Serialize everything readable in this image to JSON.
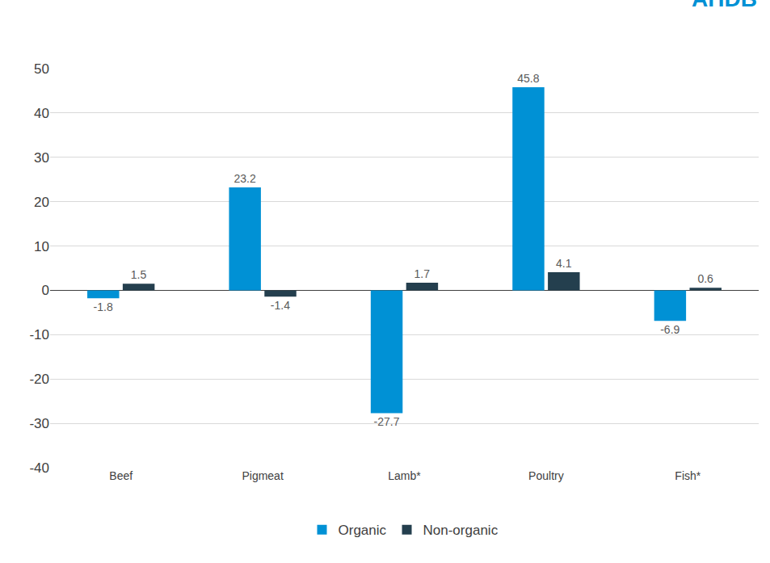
{
  "chart_data": {
    "type": "bar",
    "categories": [
      "Beef",
      "Pigmeat",
      "Lamb*",
      "Poultry",
      "Fish*"
    ],
    "series": [
      {
        "name": "Organic",
        "color": "#0091d5",
        "values": [
          -1.8,
          23.2,
          -27.7,
          45.8,
          -6.9
        ]
      },
      {
        "name": "Non-organic",
        "color": "#243f4e",
        "values": [
          1.5,
          -1.4,
          1.7,
          4.1,
          0.6
        ]
      }
    ],
    "ylim": [
      -40,
      50
    ],
    "yticks": [
      -40,
      -30,
      -20,
      -10,
      0,
      10,
      20,
      30,
      40,
      50
    ],
    "grid": true,
    "legend": "bottom",
    "data_labels": true,
    "annotations": [
      "AHDB"
    ]
  }
}
